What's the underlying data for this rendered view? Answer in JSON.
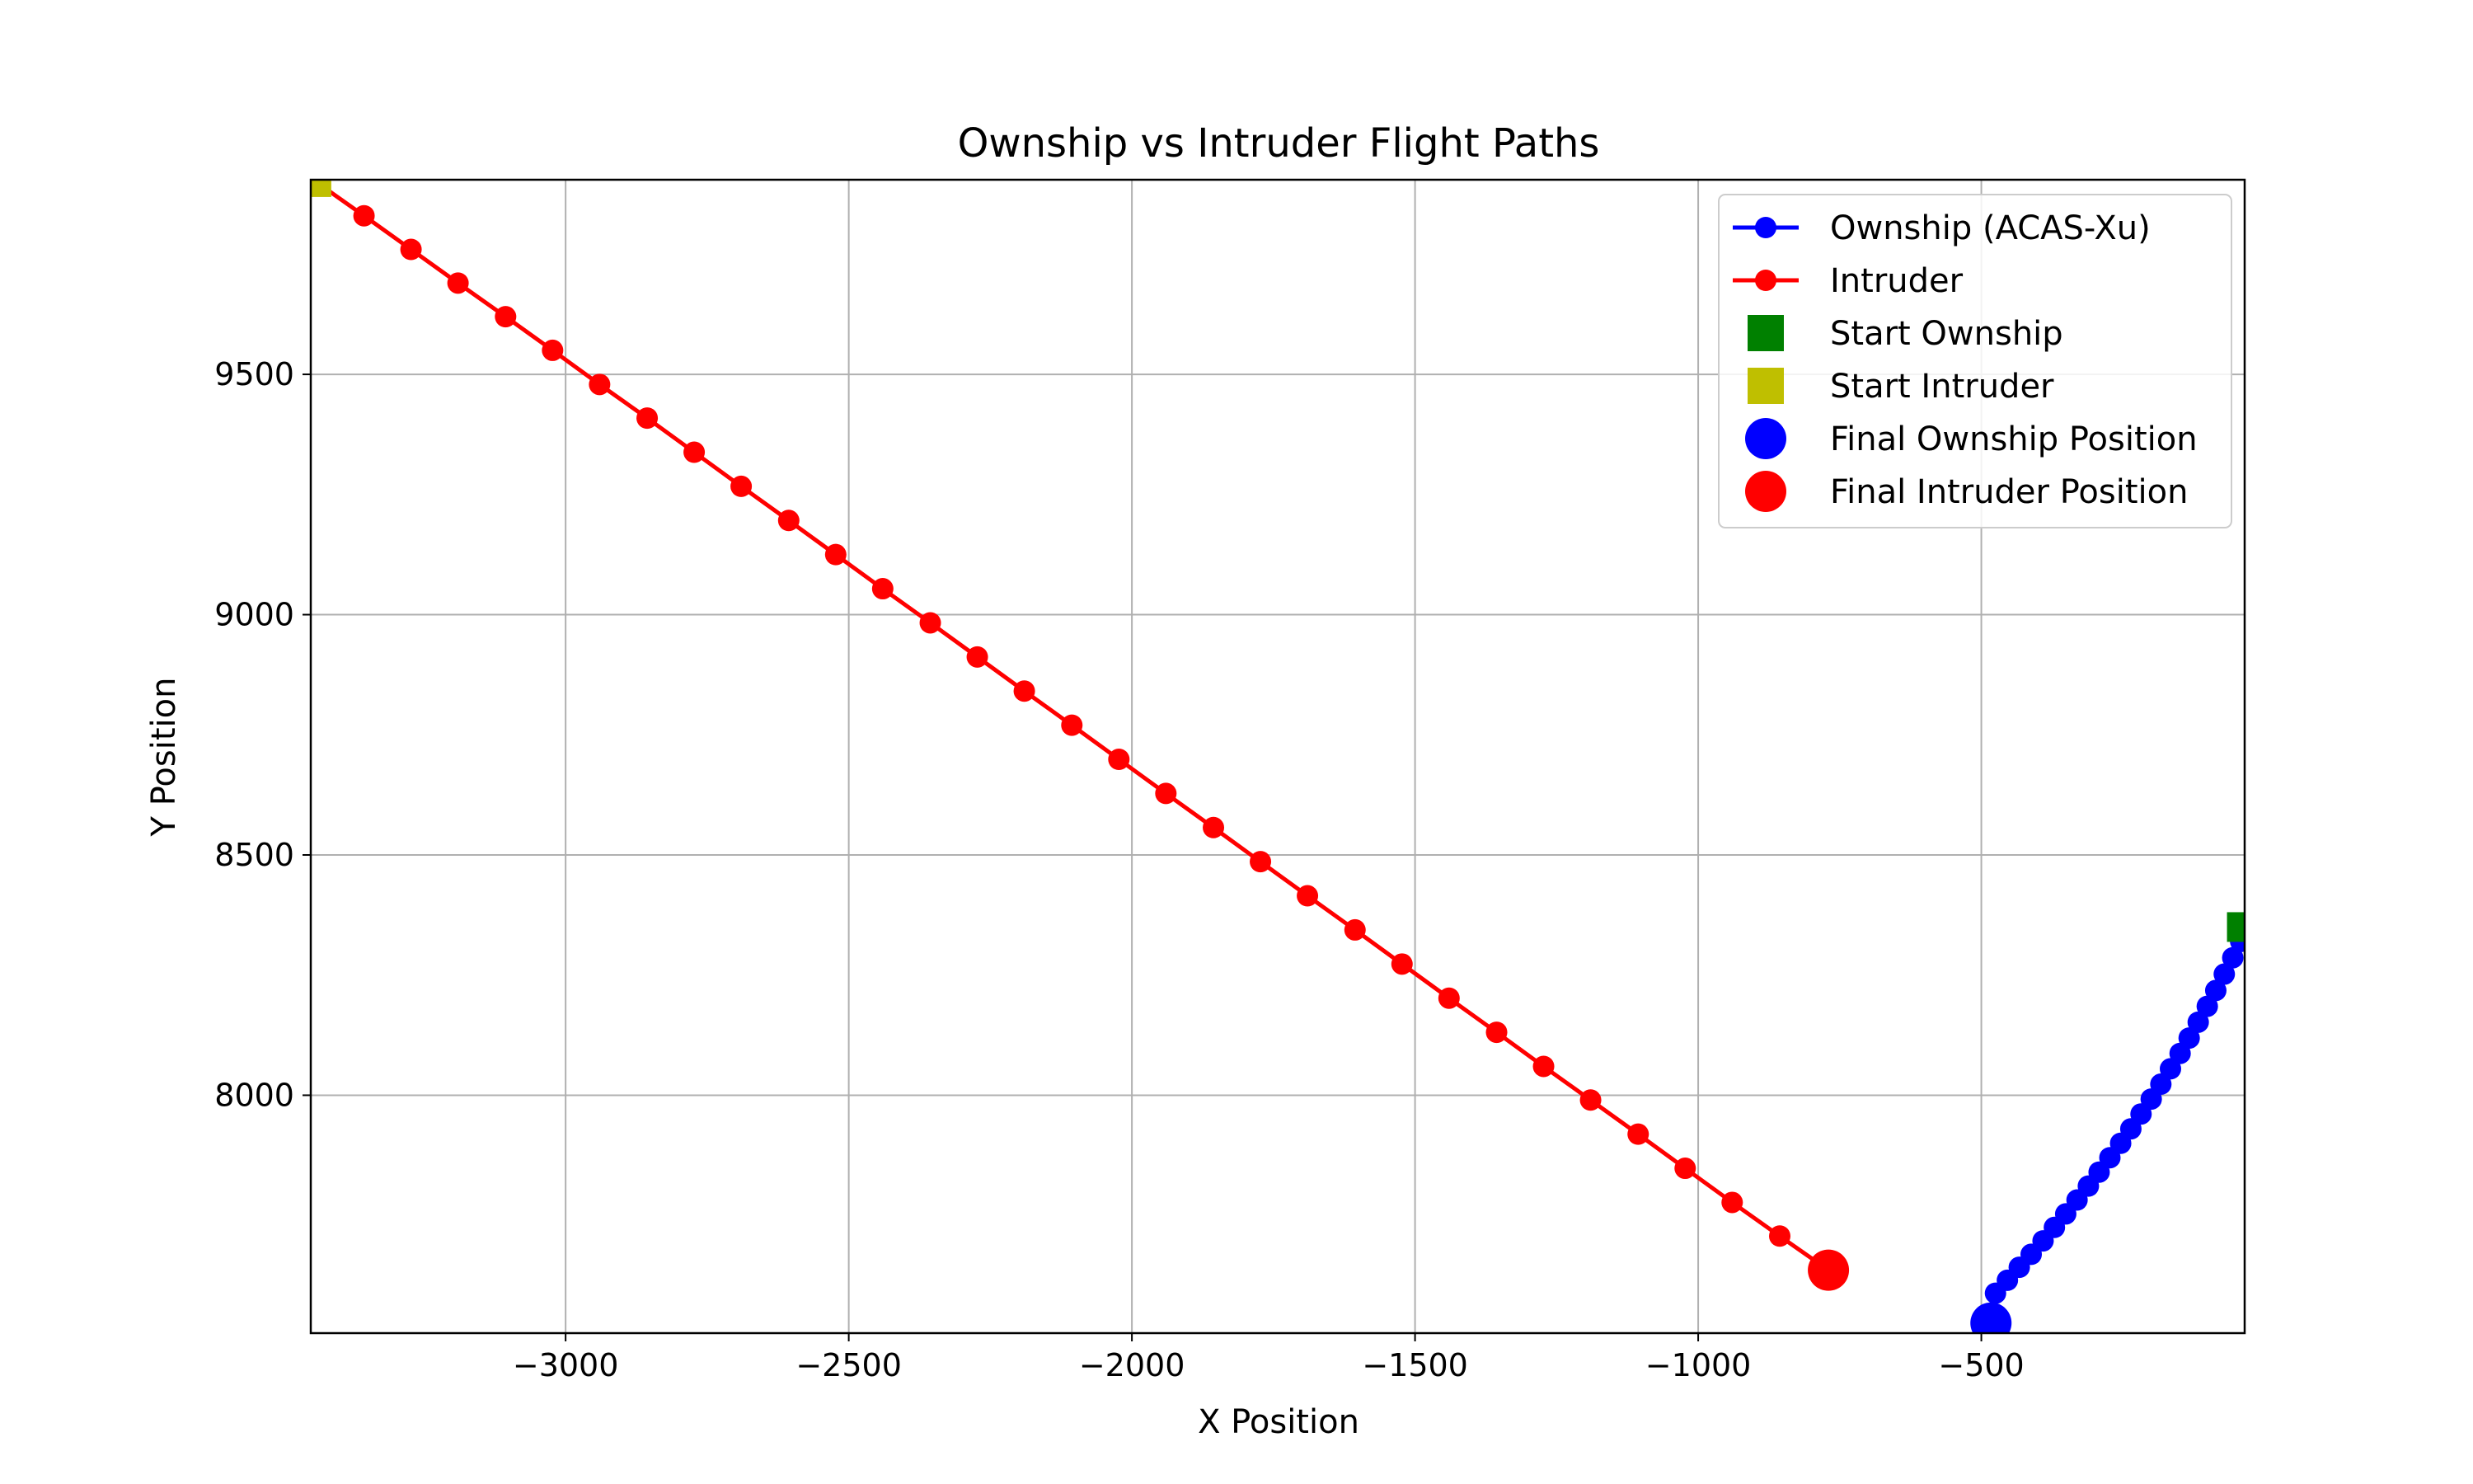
{
  "chart_data": {
    "type": "line",
    "title": "Ownship vs Intruder Flight Paths",
    "xlabel": "X Position",
    "ylabel": "Y Position",
    "xlim": [
      -3450,
      -35
    ],
    "ylim": [
      7505,
      9905
    ],
    "x_ticks": [
      -3000,
      -2500,
      -2000,
      -1500,
      -1000,
      -500
    ],
    "x_tick_labels": [
      "−3000",
      "−2500",
      "−2000",
      "−1500",
      "−1000",
      "−500"
    ],
    "y_ticks": [
      8000,
      8500,
      9000,
      9500
    ],
    "y_tick_labels": [
      "8000",
      "8500",
      "9000",
      "9500"
    ],
    "grid": true,
    "legend_position": "top-right",
    "series": [
      {
        "name": "Ownship (ACAS-Xu)",
        "color": "#0000ff",
        "marker": "circle",
        "points": [
          {
            "x": -42,
            "y": 8320
          },
          {
            "x": -56,
            "y": 8286
          },
          {
            "x": -71,
            "y": 8252
          },
          {
            "x": -86,
            "y": 8218
          },
          {
            "x": -101,
            "y": 8185
          },
          {
            "x": -117,
            "y": 8152
          },
          {
            "x": -133,
            "y": 8119
          },
          {
            "x": -149,
            "y": 8087
          },
          {
            "x": -166,
            "y": 8055
          },
          {
            "x": -183,
            "y": 8023
          },
          {
            "x": -200,
            "y": 7992
          },
          {
            "x": -218,
            "y": 7961
          },
          {
            "x": -236,
            "y": 7930
          },
          {
            "x": -254,
            "y": 7900
          },
          {
            "x": -273,
            "y": 7870
          },
          {
            "x": -292,
            "y": 7840
          },
          {
            "x": -311,
            "y": 7811
          },
          {
            "x": -331,
            "y": 7782
          },
          {
            "x": -351,
            "y": 7753
          },
          {
            "x": -371,
            "y": 7725
          },
          {
            "x": -391,
            "y": 7697
          },
          {
            "x": -412,
            "y": 7669
          },
          {
            "x": -433,
            "y": 7642
          },
          {
            "x": -454,
            "y": 7615
          },
          {
            "x": -475,
            "y": 7588
          },
          {
            "x": -483,
            "y": 7526
          }
        ]
      },
      {
        "name": "Intruder",
        "color": "#ff0000",
        "marker": "circle",
        "points": [
          {
            "x": -3440,
            "y": 9900
          },
          {
            "x": -3356,
            "y": 9830
          },
          {
            "x": -3273,
            "y": 9760
          },
          {
            "x": -3190,
            "y": 9690
          },
          {
            "x": -3106,
            "y": 9620
          },
          {
            "x": -3023,
            "y": 9550
          },
          {
            "x": -2940,
            "y": 9479
          },
          {
            "x": -2856,
            "y": 9409
          },
          {
            "x": -2773,
            "y": 9338
          },
          {
            "x": -2690,
            "y": 9267
          },
          {
            "x": -2606,
            "y": 9196
          },
          {
            "x": -2523,
            "y": 9125
          },
          {
            "x": -2440,
            "y": 9054
          },
          {
            "x": -2356,
            "y": 8983
          },
          {
            "x": -2273,
            "y": 8912
          },
          {
            "x": -2190,
            "y": 8841
          },
          {
            "x": -2106,
            "y": 8770
          },
          {
            "x": -2023,
            "y": 8699
          },
          {
            "x": -1940,
            "y": 8628
          },
          {
            "x": -1856,
            "y": 8557
          },
          {
            "x": -1773,
            "y": 8486
          },
          {
            "x": -1690,
            "y": 8415
          },
          {
            "x": -1606,
            "y": 8344
          },
          {
            "x": -1523,
            "y": 8273
          },
          {
            "x": -1440,
            "y": 8202
          },
          {
            "x": -1356,
            "y": 8131
          },
          {
            "x": -1273,
            "y": 8060
          },
          {
            "x": -1190,
            "y": 7990
          },
          {
            "x": -1106,
            "y": 7919
          },
          {
            "x": -1023,
            "y": 7848
          },
          {
            "x": -940,
            "y": 7777
          },
          {
            "x": -856,
            "y": 7707
          },
          {
            "x": -770,
            "y": 7636
          }
        ]
      }
    ],
    "markers": [
      {
        "name": "Start Ownship",
        "shape": "square",
        "color": "#008000",
        "x": -40,
        "y": 8350
      },
      {
        "name": "Start Intruder",
        "shape": "square",
        "color": "#bfbf00",
        "x": -3440,
        "y": 9900
      },
      {
        "name": "Final Ownship Position",
        "shape": "circle",
        "color": "#0000ff",
        "x": -483,
        "y": 7526
      },
      {
        "name": "Final Intruder Position",
        "shape": "circle",
        "color": "#ff0000",
        "x": -770,
        "y": 7636
      }
    ],
    "legend": [
      {
        "label": "Ownship (ACAS-Xu)",
        "color": "#0000ff",
        "kind": "line-circle"
      },
      {
        "label": "Intruder",
        "color": "#ff0000",
        "kind": "line-circle"
      },
      {
        "label": "Start Ownship",
        "color": "#008000",
        "kind": "square"
      },
      {
        "label": "Start Intruder",
        "color": "#bfbf00",
        "kind": "square"
      },
      {
        "label": "Final Ownship Position",
        "color": "#0000ff",
        "kind": "big-circle"
      },
      {
        "label": "Final Intruder Position",
        "color": "#ff0000",
        "kind": "big-circle"
      }
    ]
  }
}
